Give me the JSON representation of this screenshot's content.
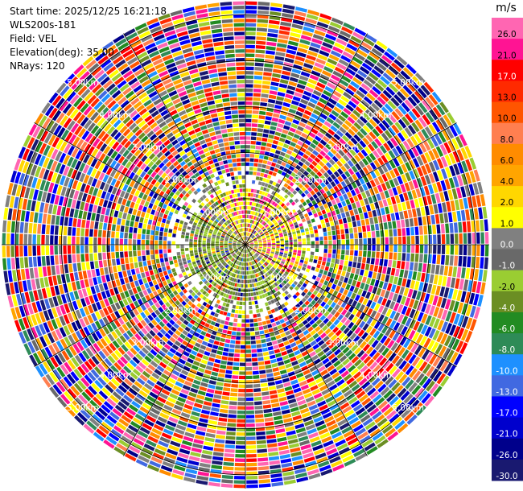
{
  "header": {
    "start_time": "Start time: 2025/12/25 16:21:18",
    "instrument": "WLS200s-181",
    "field": "Field: VEL",
    "elevation": "Elevation(deg): 35.00",
    "nrays": "NRays: 120"
  },
  "chart_data": {
    "type": "heatmap",
    "projection": "polar-ppi",
    "field": "VEL",
    "elevation_deg": 35.0,
    "n_rays": 120,
    "range_rings_km": [
      1.0,
      2.0,
      3.0,
      4.0,
      5.0
    ],
    "ring_labels": [
      "1.00km",
      "2.00km",
      "3.00km",
      "4.00km",
      "5.00km"
    ],
    "max_range_km": 5.3,
    "near_field_pattern": "positive (yellow/pink) velocities to north-east, negative (green) to west/south-west",
    "colorbar": {
      "unit": "m/s",
      "ticks": [
        "26.0",
        "21.0",
        "17.0",
        "13.0",
        "10.0",
        "8.0",
        "6.0",
        "4.0",
        "2.0",
        "1.0",
        "0.0",
        "-1.0",
        "-2.0",
        "-4.0",
        "-6.0",
        "-8.0",
        "-10.0",
        "-13.0",
        "-17.0",
        "-21.0",
        "-26.0",
        "-30.0"
      ],
      "colors": [
        "#ff66b2",
        "#ff1493",
        "#ff0000",
        "#ff2a00",
        "#ff5500",
        "#ff7f50",
        "#ff8c00",
        "#ffa500",
        "#ffd700",
        "#ffff00",
        "#808080",
        "#696969",
        "#9acd32",
        "#6b8e23",
        "#228b22",
        "#2e8b57",
        "#1e90ff",
        "#4169e1",
        "#0000ff",
        "#0000cd",
        "#00008b",
        "#191970"
      ]
    }
  }
}
